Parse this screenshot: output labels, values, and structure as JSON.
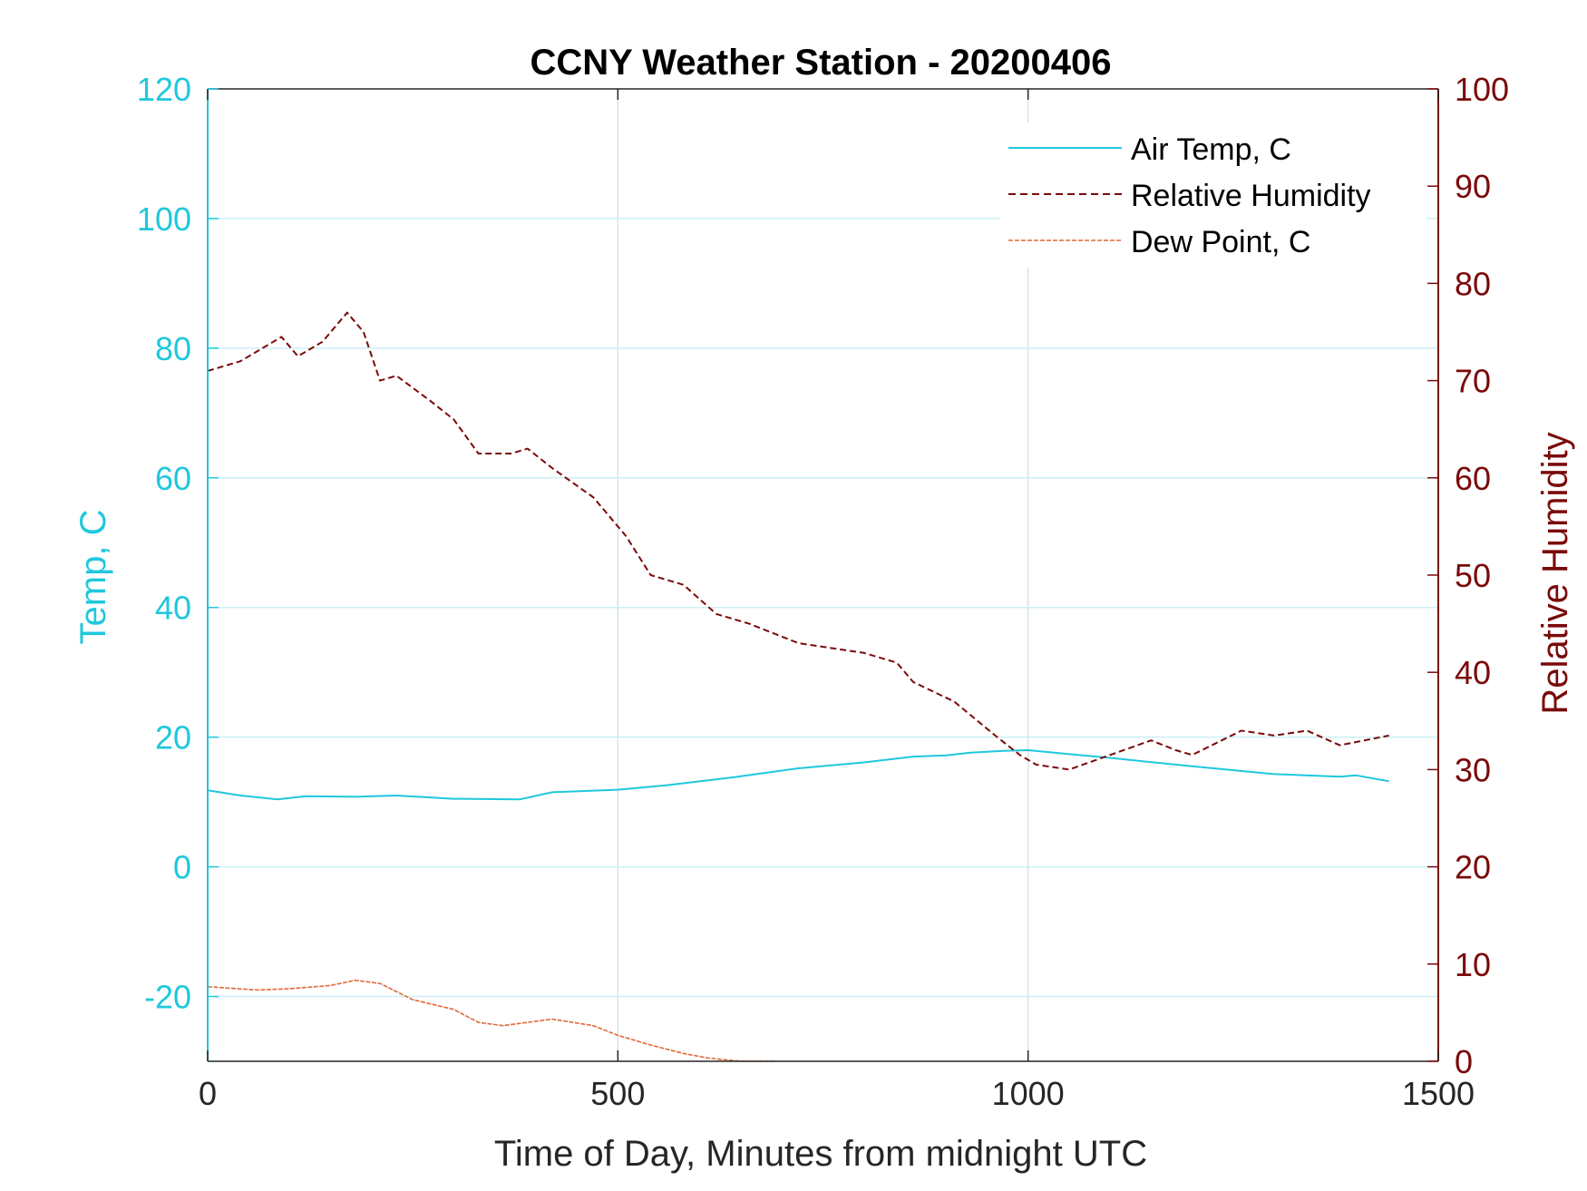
{
  "chart_data": {
    "type": "line",
    "title": "CCNY Weather Station - 20200406",
    "xlabel": "Time of Day, Minutes from midnight UTC",
    "ylabel_left": "Temp, C",
    "ylabel_right": "Relative Humidity",
    "xlim": [
      0,
      1500
    ],
    "ylim_left": [
      -30,
      120
    ],
    "ylim_right": [
      0,
      100
    ],
    "xticks": [
      0,
      500,
      1000,
      1500
    ],
    "yticks_left": [
      120,
      100,
      80,
      60,
      40,
      20,
      0,
      -20
    ],
    "yticks_right": [
      100,
      90,
      80,
      70,
      60,
      50,
      40,
      30,
      20,
      10,
      0
    ],
    "grid": true,
    "legend_position": "top-right",
    "colors": {
      "temp": "#1fc8dc",
      "rh": "#7a0a0a",
      "dew": "#e06a38",
      "left_axis": "#1fc8dc",
      "right_axis": "#7a0a0a",
      "grid": "#d6e3ea"
    },
    "series": [
      {
        "name": "Air Temp, C",
        "axis": "left",
        "style": "solid",
        "x": [
          0,
          40,
          85,
          120,
          180,
          230,
          300,
          380,
          420,
          500,
          560,
          640,
          720,
          800,
          860,
          900,
          930,
          970,
          1000,
          1040,
          1100,
          1200,
          1300,
          1380,
          1400,
          1440
        ],
        "y": [
          11.8,
          11.0,
          10.4,
          10.9,
          10.8,
          11.0,
          10.5,
          10.4,
          11.5,
          11.9,
          12.6,
          13.8,
          15.2,
          16.1,
          17.0,
          17.2,
          17.6,
          17.9,
          18.0,
          17.5,
          16.8,
          15.5,
          14.3,
          13.9,
          14.1,
          13.2
        ]
      },
      {
        "name": "Relative Humidity",
        "axis": "right",
        "style": "dashed",
        "x": [
          0,
          40,
          90,
          110,
          140,
          170,
          190,
          210,
          230,
          270,
          300,
          330,
          370,
          390,
          420,
          470,
          510,
          540,
          580,
          620,
          660,
          720,
          800,
          840,
          860,
          910,
          960,
          990,
          1010,
          1050,
          1100,
          1150,
          1180,
          1200,
          1260,
          1300,
          1340,
          1380,
          1410,
          1440
        ],
        "y": [
          71,
          72,
          74.5,
          72.5,
          74,
          77,
          75,
          70,
          70.5,
          68,
          66,
          62.5,
          62.5,
          63,
          61,
          58,
          54,
          50,
          49,
          46,
          45,
          43,
          42,
          41,
          39,
          37,
          33.5,
          31.5,
          30.5,
          30,
          31.5,
          33,
          32,
          31.5,
          34,
          33.5,
          34,
          32.5,
          33,
          33.5
        ]
      },
      {
        "name": "Dew Point, C",
        "axis": "left",
        "style": "solid-thin",
        "x": [
          0,
          60,
          100,
          150,
          180,
          210,
          250,
          300,
          330,
          360,
          390,
          420,
          470,
          500,
          540,
          580,
          610,
          650,
          690
        ],
        "y": [
          -18.5,
          -19,
          -18.8,
          -18.3,
          -17.5,
          -18,
          -20.5,
          -22,
          -24,
          -24.5,
          -24,
          -23.5,
          -24.5,
          -26,
          -27.5,
          -28.8,
          -29.5,
          -30,
          -30
        ]
      }
    ]
  }
}
